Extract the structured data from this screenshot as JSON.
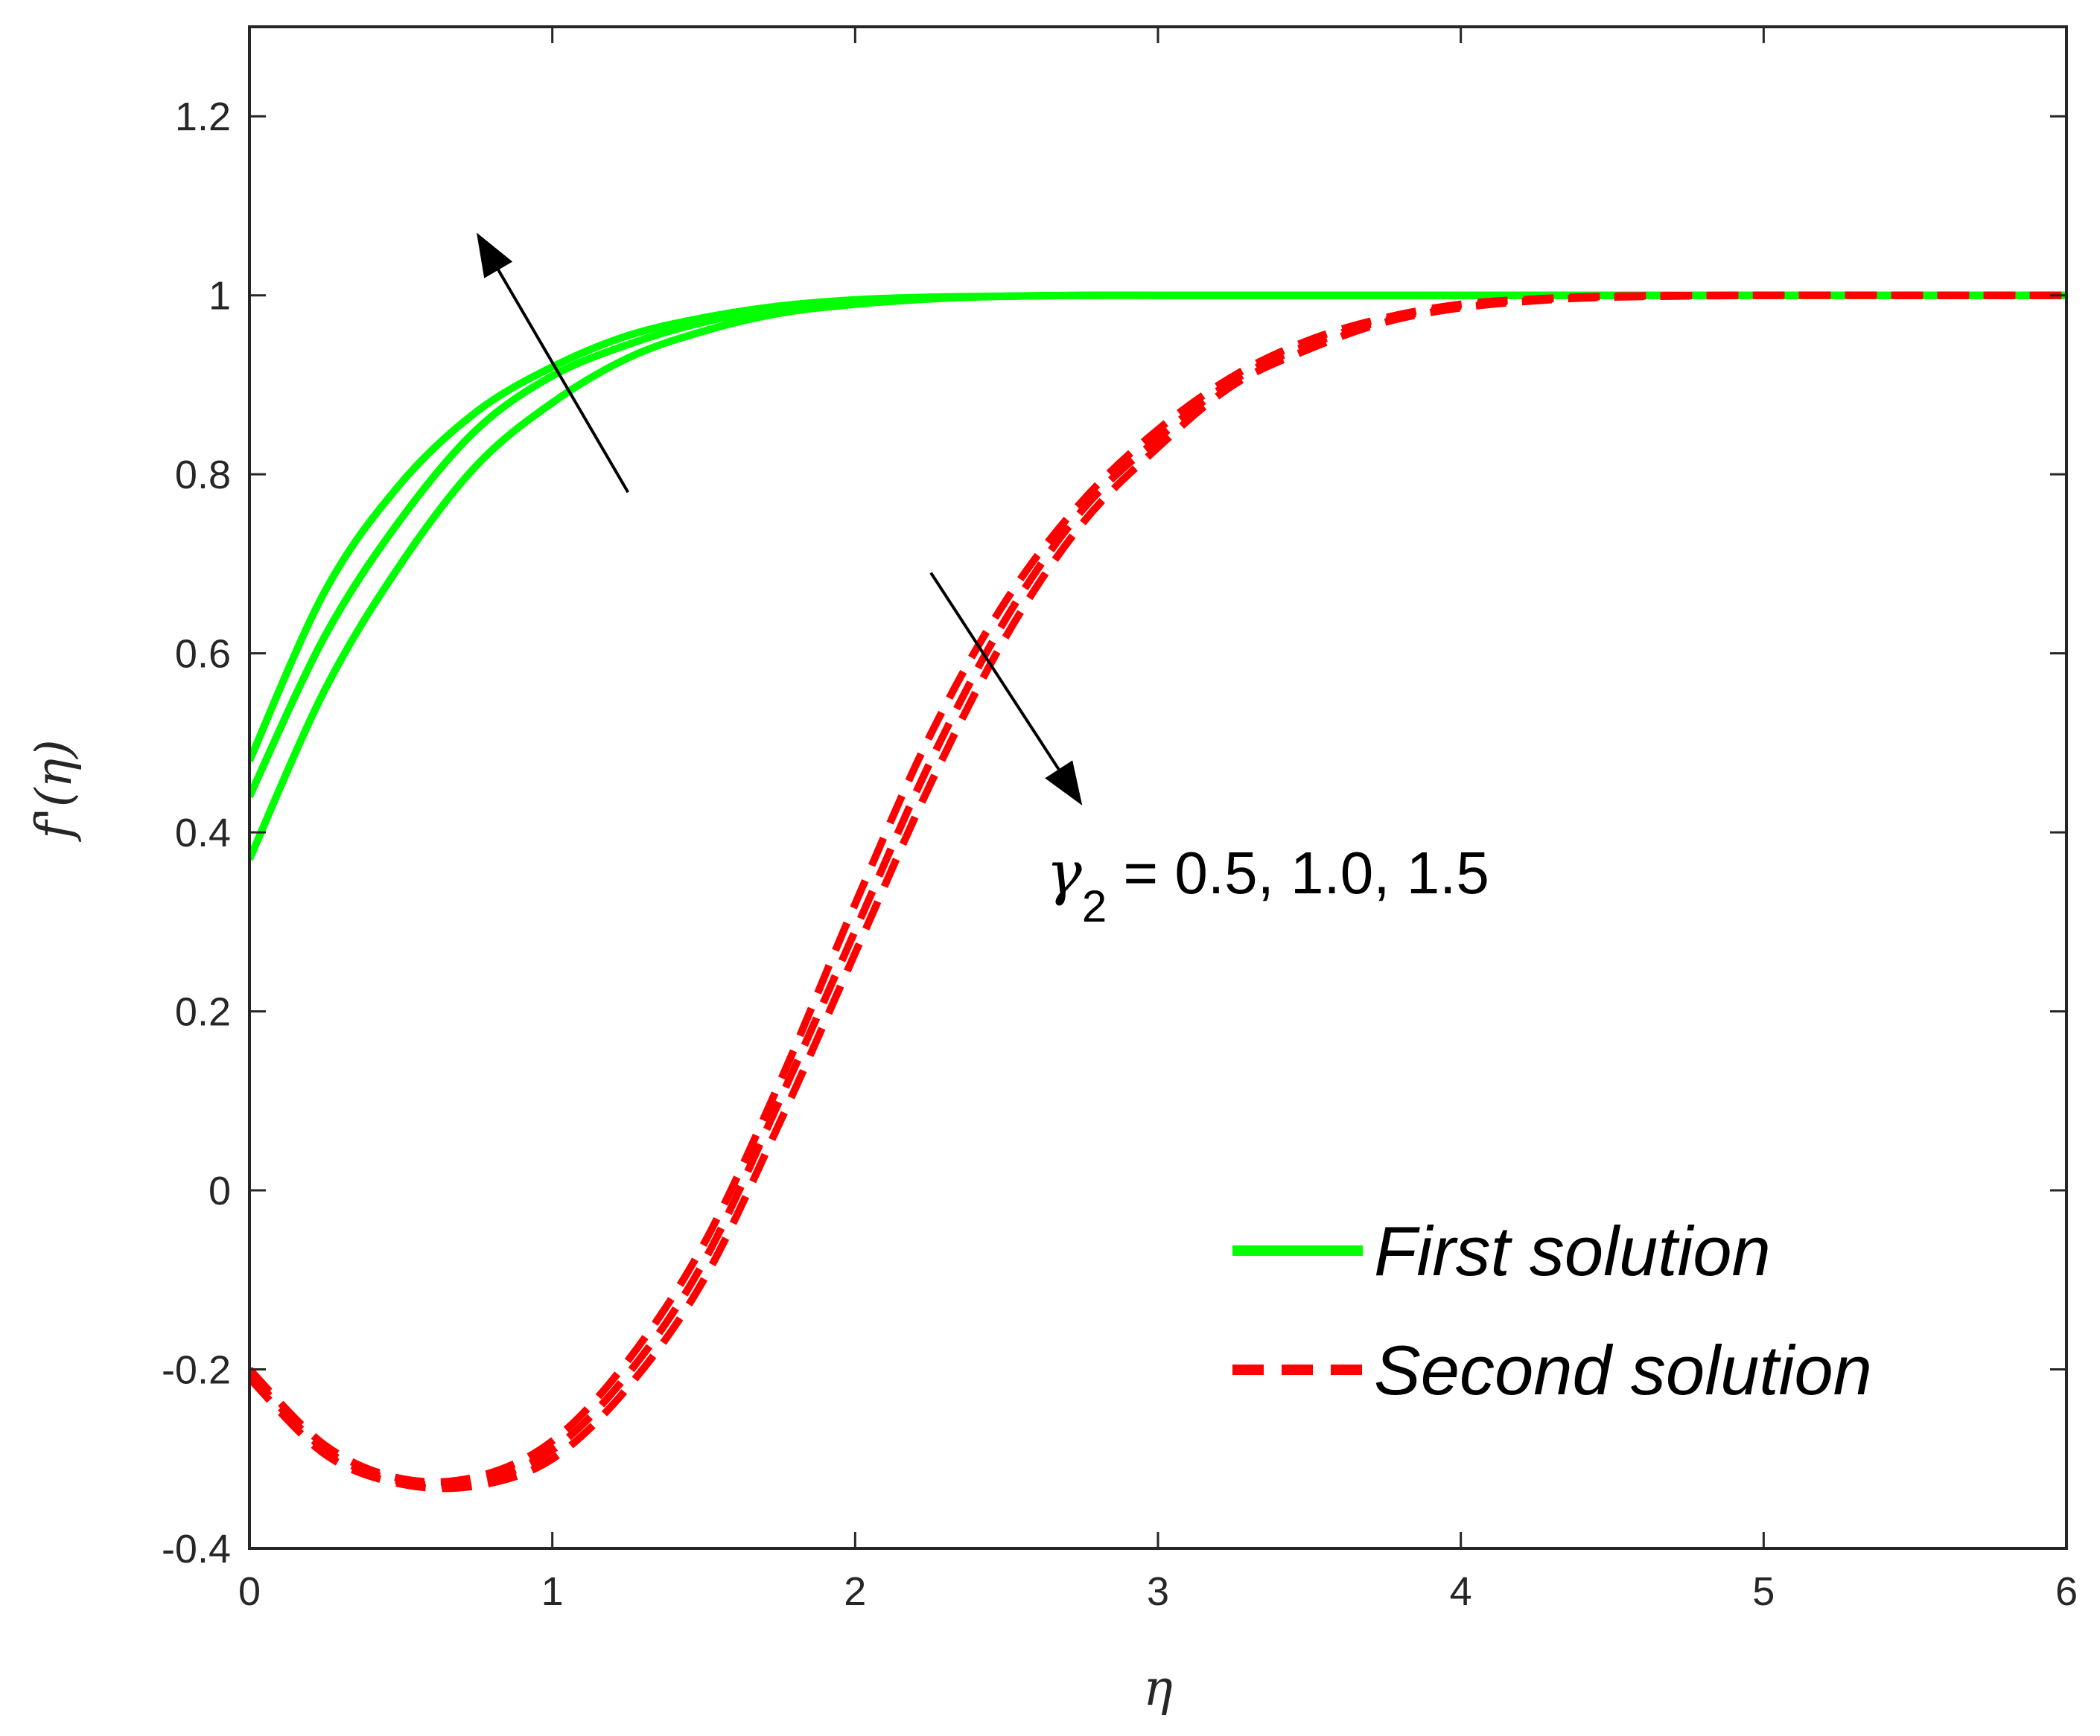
{
  "colors": {
    "first": "#00ff00",
    "second": "#ff0000",
    "axis": "#262626",
    "arrow": "#000000"
  },
  "chart_data": {
    "type": "line",
    "xlabel": "η",
    "ylabel": "f'(η)",
    "xlim": [
      0,
      6
    ],
    "ylim": [
      -0.4,
      1.3
    ],
    "xticks": [
      0,
      1,
      2,
      3,
      4,
      5,
      6
    ],
    "xtick_labels": [
      "0",
      "1",
      "2",
      "3",
      "4",
      "5",
      "6"
    ],
    "yticks": [
      -0.4,
      -0.2,
      0,
      0.2,
      0.4,
      0.6,
      0.8,
      1,
      1.2
    ],
    "ytick_labels": [
      "-0.4",
      "-0.2",
      "0",
      "0.2",
      "0.4",
      "0.6",
      "0.8",
      "1",
      "1.2"
    ],
    "grid": false,
    "legend_position": "bottom-right",
    "legend": [
      "First solution",
      "Second solution"
    ],
    "annotation": {
      "symbol": "γ",
      "subscript": "2",
      "text": " = 0.5, 1.0, 1.5"
    },
    "x": [
      0,
      0.25,
      0.5,
      0.75,
      1,
      1.25,
      1.5,
      1.75,
      2,
      2.25,
      2.5,
      2.75,
      3,
      3.25,
      3.5,
      3.75,
      4,
      4.25,
      4.5,
      5,
      5.5,
      6
    ],
    "series": [
      {
        "group": "First solution",
        "style": "solid",
        "values": [
          0.48,
          0.67,
          0.79,
          0.87,
          0.92,
          0.955,
          0.975,
          0.988,
          0.995,
          0.998,
          0.999,
          1,
          1,
          1,
          1,
          1,
          1,
          1,
          1,
          1,
          1,
          1
        ]
      },
      {
        "group": "First solution",
        "style": "solid",
        "values": [
          0.44,
          0.62,
          0.75,
          0.85,
          0.91,
          0.945,
          0.97,
          0.985,
          0.993,
          0.997,
          0.999,
          1,
          1,
          1,
          1,
          1,
          1,
          1,
          1,
          1,
          1,
          1
        ]
      },
      {
        "group": "First solution",
        "style": "solid",
        "values": [
          0.37,
          0.56,
          0.7,
          0.81,
          0.88,
          0.93,
          0.96,
          0.98,
          0.99,
          0.996,
          0.999,
          1,
          1,
          1,
          1,
          1,
          1,
          1,
          1,
          1,
          1,
          1
        ]
      },
      {
        "group": "Second solution",
        "style": "dashed",
        "values": [
          -0.2,
          -0.285,
          -0.322,
          -0.32,
          -0.28,
          -0.19,
          -0.06,
          0.12,
          0.32,
          0.51,
          0.66,
          0.77,
          0.85,
          0.91,
          0.95,
          0.975,
          0.99,
          0.996,
          0.999,
          1,
          1,
          1
        ]
      },
      {
        "group": "Second solution",
        "style": "dashed",
        "values": [
          -0.205,
          -0.29,
          -0.325,
          -0.325,
          -0.29,
          -0.205,
          -0.08,
          0.1,
          0.29,
          0.48,
          0.64,
          0.76,
          0.84,
          0.905,
          0.945,
          0.972,
          0.988,
          0.995,
          0.999,
          1,
          1,
          1
        ]
      },
      {
        "group": "Second solution",
        "style": "dashed",
        "values": [
          -0.21,
          -0.295,
          -0.328,
          -0.33,
          -0.3,
          -0.22,
          -0.1,
          0.075,
          0.265,
          0.455,
          0.62,
          0.745,
          0.83,
          0.9,
          0.94,
          0.97,
          0.986,
          0.994,
          0.998,
          1,
          1,
          1
        ]
      }
    ],
    "arrows": [
      {
        "from": [
          1.25,
          0.78
        ],
        "to": [
          0.75,
          1.07
        ]
      },
      {
        "from": [
          2.25,
          0.69
        ],
        "to": [
          2.75,
          0.43
        ]
      }
    ]
  }
}
